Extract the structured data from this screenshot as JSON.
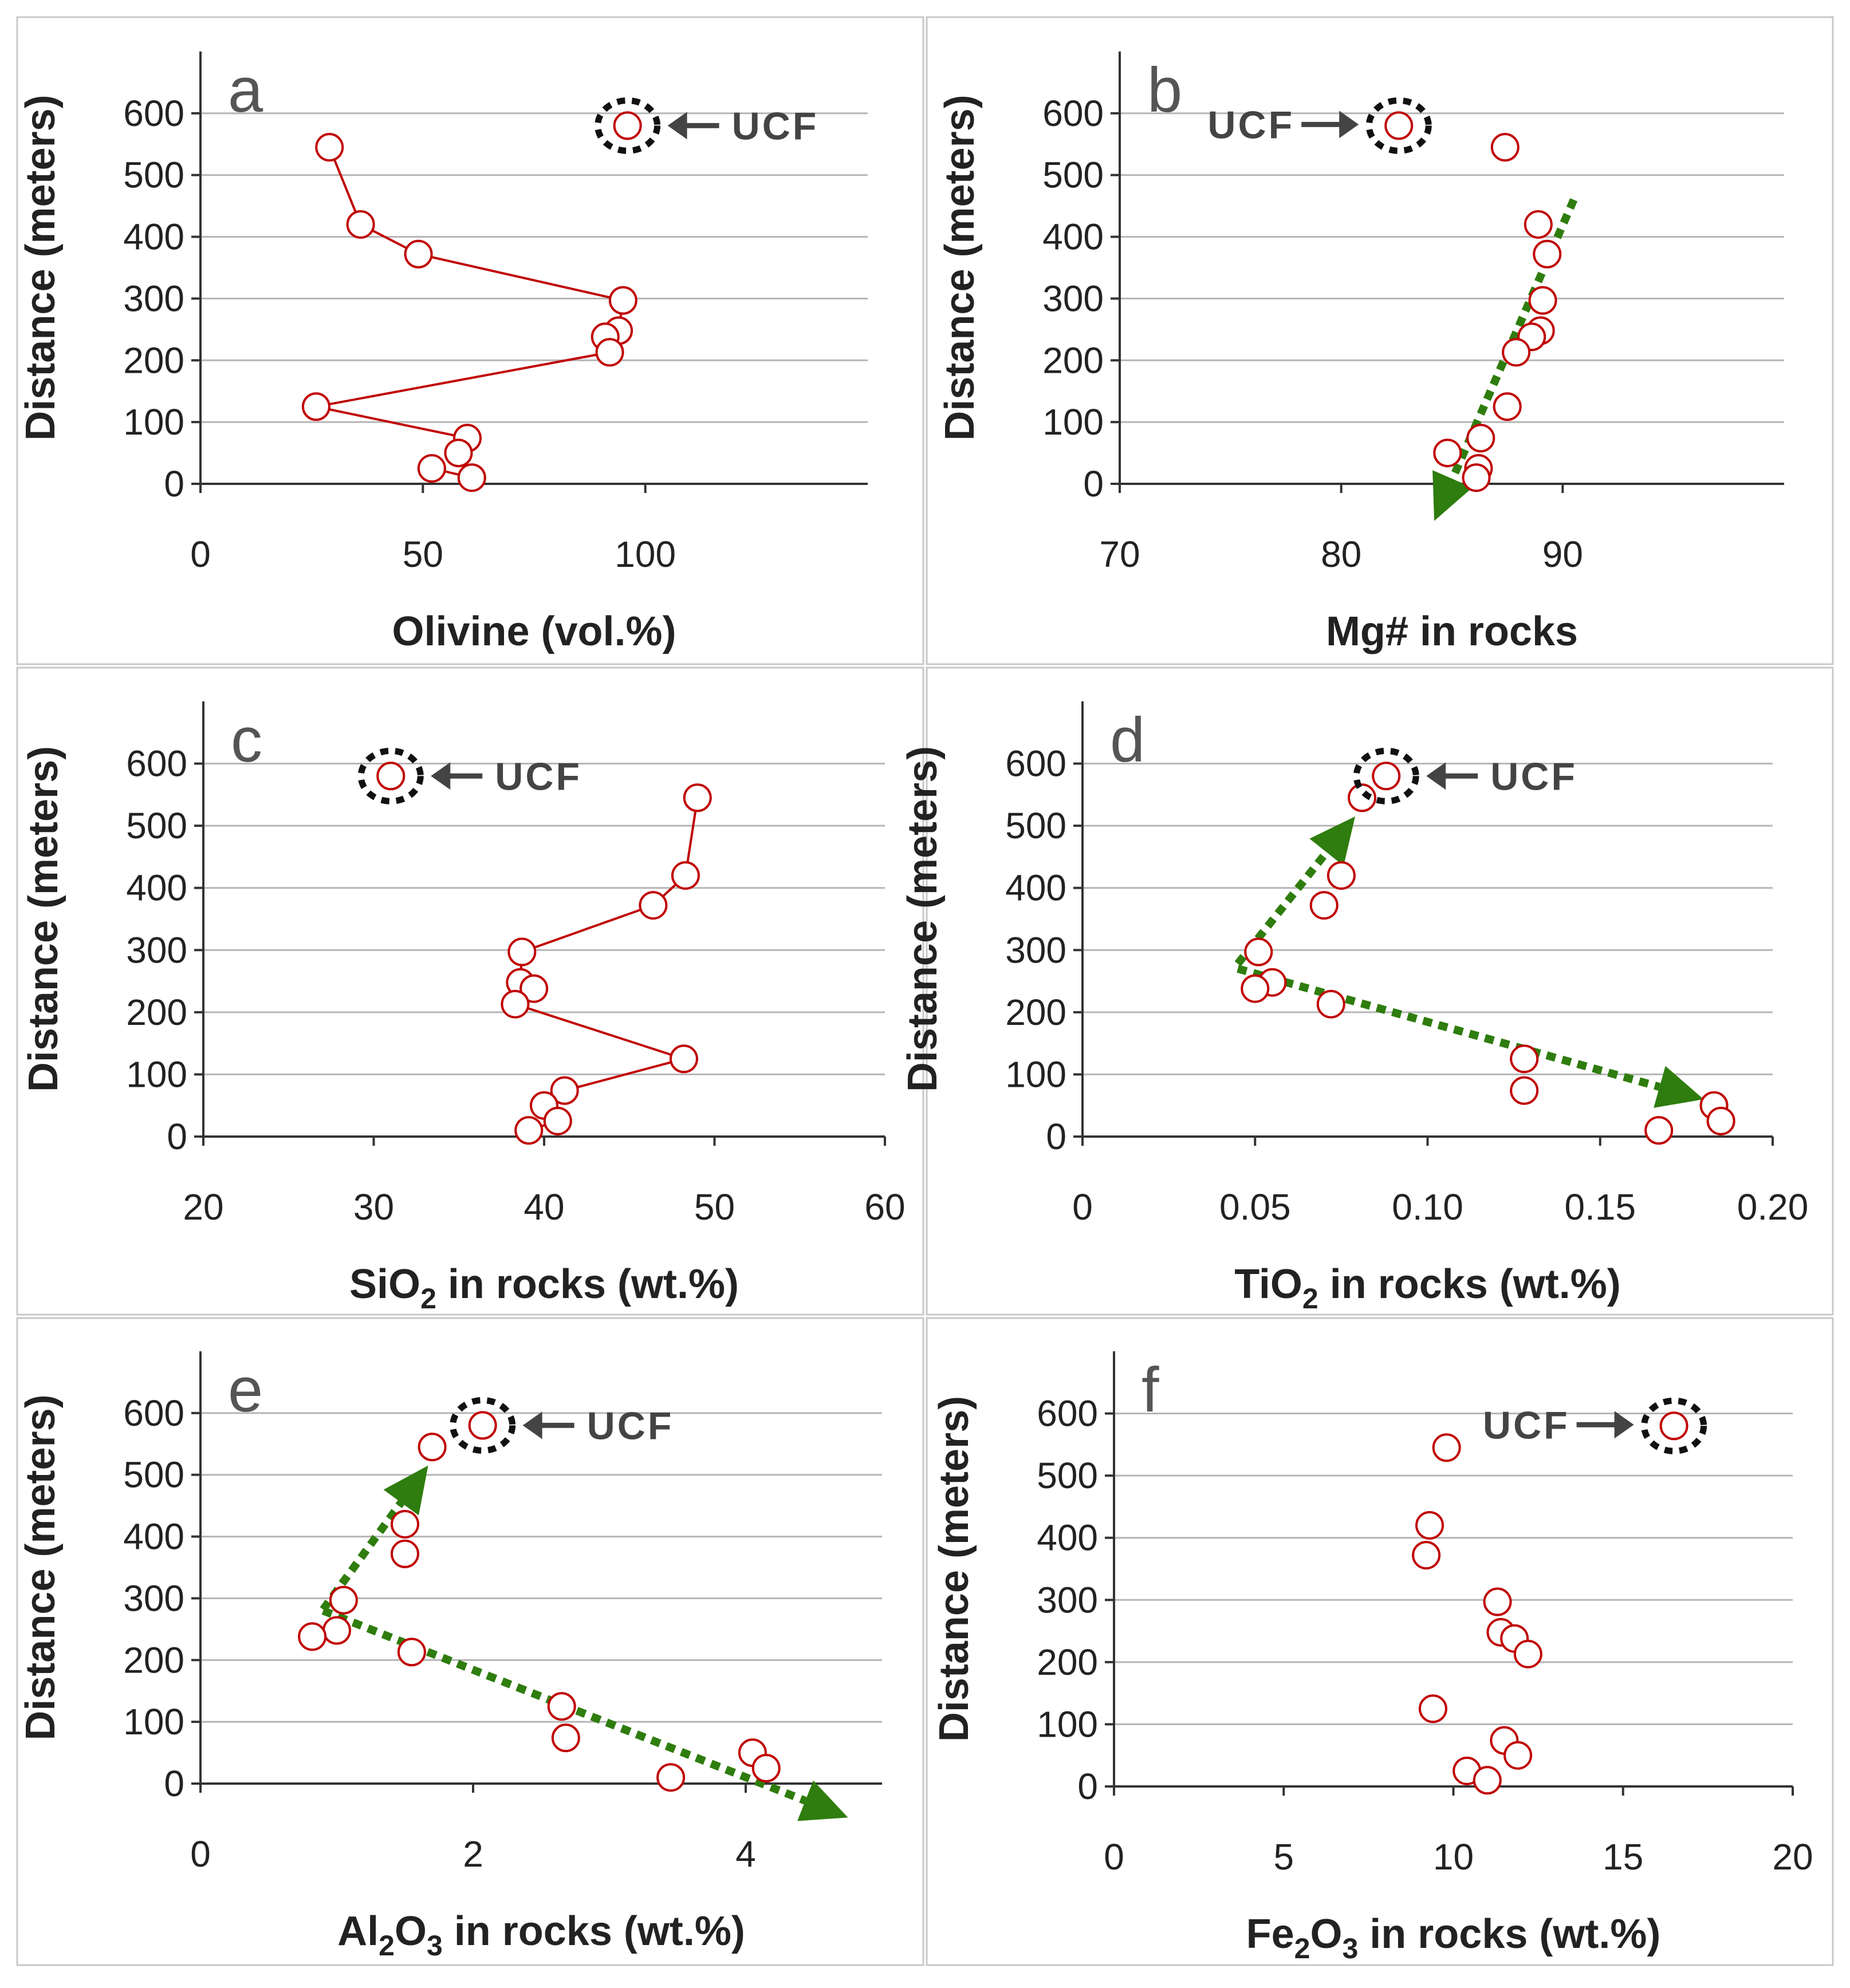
{
  "colors": {
    "marker": "#c00000",
    "trend": "#2e7d0e",
    "grid": "#b5b5b5",
    "axis": "#333333",
    "ucf_ring": "#111111",
    "ucf_arrow": "#444444"
  },
  "ucf_label": "UCF",
  "chart_data": [
    {
      "id": "a",
      "type": "line",
      "panel_letter": "a",
      "xlabel_parts": [
        "Olivine (vol.%)"
      ],
      "ylabel": "Distance (meters)",
      "xlim": [
        0,
        150
      ],
      "ylim": [
        0,
        700
      ],
      "xticks": [
        "0",
        "50",
        "100"
      ],
      "yticks": [
        "0",
        "100",
        "200",
        "300",
        "400",
        "500",
        "600"
      ],
      "ucf": {
        "x": 96,
        "y": 580,
        "arrow_dir": "left"
      },
      "points": [
        {
          "x": 29,
          "y": 545
        },
        {
          "x": 36,
          "y": 420
        },
        {
          "x": 49,
          "y": 372
        },
        {
          "x": 95,
          "y": 297
        },
        {
          "x": 94,
          "y": 248
        },
        {
          "x": 91,
          "y": 238
        },
        {
          "x": 92,
          "y": 213
        },
        {
          "x": 26,
          "y": 125
        },
        {
          "x": 60,
          "y": 74
        },
        {
          "x": 58,
          "y": 50
        },
        {
          "x": 61,
          "y": 10
        },
        {
          "x": 52,
          "y": 25
        }
      ]
    },
    {
      "id": "b",
      "type": "scatter",
      "panel_letter": "b",
      "xlabel_parts": [
        "Mg# in rocks"
      ],
      "ylabel": "Distance (meters)",
      "xlim": [
        70,
        100
      ],
      "ylim": [
        0,
        700
      ],
      "xticks": [
        "70",
        "80",
        "90"
      ],
      "yticks": [
        "0",
        "100",
        "200",
        "300",
        "400",
        "500",
        "600"
      ],
      "ucf": {
        "x": 82.6,
        "y": 580,
        "arrow_dir": "right"
      },
      "points": [
        {
          "x": 87.4,
          "y": 545
        },
        {
          "x": 88.9,
          "y": 420
        },
        {
          "x": 89.3,
          "y": 372
        },
        {
          "x": 89.1,
          "y": 297
        },
        {
          "x": 89.0,
          "y": 248
        },
        {
          "x": 88.6,
          "y": 238
        },
        {
          "x": 87.9,
          "y": 213
        },
        {
          "x": 87.5,
          "y": 125
        },
        {
          "x": 86.3,
          "y": 74
        },
        {
          "x": 84.8,
          "y": 50
        },
        {
          "x": 86.2,
          "y": 25
        },
        {
          "x": 86.1,
          "y": 10
        }
      ],
      "trend_arrows": [
        {
          "from": [
            90.5,
            460
          ],
          "to": [
            84.2,
            -60
          ]
        }
      ]
    },
    {
      "id": "c",
      "type": "line",
      "panel_letter": "c",
      "xlabel_parts": [
        "SiO",
        "2",
        "  in rocks (wt.%)"
      ],
      "ylabel": "Distance (meters)",
      "xlim": [
        20,
        60
      ],
      "ylim": [
        0,
        700
      ],
      "xticks": [
        "20",
        "30",
        "40",
        "50",
        "60"
      ],
      "yticks": [
        "0",
        "100",
        "200",
        "300",
        "400",
        "500",
        "600"
      ],
      "ucf": {
        "x": 31,
        "y": 580,
        "arrow_dir": "left"
      },
      "points": [
        {
          "x": 49.0,
          "y": 545
        },
        {
          "x": 48.3,
          "y": 420
        },
        {
          "x": 46.4,
          "y": 372
        },
        {
          "x": 38.7,
          "y": 297
        },
        {
          "x": 38.6,
          "y": 248
        },
        {
          "x": 39.4,
          "y": 238
        },
        {
          "x": 38.3,
          "y": 213
        },
        {
          "x": 48.2,
          "y": 125
        },
        {
          "x": 41.2,
          "y": 74
        },
        {
          "x": 40.0,
          "y": 50
        },
        {
          "x": 40.8,
          "y": 25
        },
        {
          "x": 39.1,
          "y": 10
        }
      ]
    },
    {
      "id": "d",
      "type": "scatter",
      "panel_letter": "d",
      "xlabel_parts": [
        "TiO",
        "2",
        " in rocks (wt.%)"
      ],
      "ylabel": "Distance (meters)",
      "xlim": [
        0,
        0.2
      ],
      "ylim": [
        0,
        700
      ],
      "xticks": [
        "0",
        "0.05",
        "0.10",
        "0.15",
        "0.20"
      ],
      "yticks": [
        "0",
        "100",
        "200",
        "300",
        "400",
        "500",
        "600"
      ],
      "ucf": {
        "x": 0.088,
        "y": 580,
        "arrow_dir": "left"
      },
      "points": [
        {
          "x": 0.081,
          "y": 545
        },
        {
          "x": 0.075,
          "y": 420
        },
        {
          "x": 0.07,
          "y": 372
        },
        {
          "x": 0.051,
          "y": 297
        },
        {
          "x": 0.055,
          "y": 248
        },
        {
          "x": 0.05,
          "y": 238
        },
        {
          "x": 0.072,
          "y": 213
        },
        {
          "x": 0.128,
          "y": 125
        },
        {
          "x": 0.128,
          "y": 74
        },
        {
          "x": 0.183,
          "y": 50
        },
        {
          "x": 0.185,
          "y": 25
        },
        {
          "x": 0.167,
          "y": 10
        }
      ],
      "trend_arrows": [
        {
          "from": [
            0.045,
            278
          ],
          "to": [
            0.079,
            515
          ]
        },
        {
          "from": [
            0.045,
            270
          ],
          "to": [
            0.18,
            60
          ]
        }
      ]
    },
    {
      "id": "e",
      "type": "scatter",
      "panel_letter": "e",
      "xlabel_parts": [
        "Al",
        "2",
        "O",
        "3",
        " in rocks (wt.%)"
      ],
      "ylabel": "Distance (meters)",
      "xlim": [
        0,
        5
      ],
      "ylim": [
        0,
        700
      ],
      "xticks": [
        "0",
        "2",
        "4"
      ],
      "yticks": [
        "0",
        "100",
        "200",
        "300",
        "400",
        "500",
        "600"
      ],
      "ucf": {
        "x": 2.07,
        "y": 580,
        "arrow_dir": "left"
      },
      "points": [
        {
          "x": 1.7,
          "y": 545
        },
        {
          "x": 1.5,
          "y": 420
        },
        {
          "x": 1.5,
          "y": 372
        },
        {
          "x": 1.05,
          "y": 297
        },
        {
          "x": 1.0,
          "y": 248
        },
        {
          "x": 0.82,
          "y": 238
        },
        {
          "x": 1.55,
          "y": 213
        },
        {
          "x": 2.65,
          "y": 125
        },
        {
          "x": 2.68,
          "y": 74
        },
        {
          "x": 4.05,
          "y": 50
        },
        {
          "x": 4.15,
          "y": 25
        },
        {
          "x": 3.45,
          "y": 10
        }
      ],
      "trend_arrows": [
        {
          "from": [
            0.9,
            282
          ],
          "to": [
            1.67,
            515
          ]
        },
        {
          "from": [
            0.9,
            280
          ],
          "to": [
            4.75,
            -55
          ]
        }
      ]
    },
    {
      "id": "f",
      "type": "scatter",
      "panel_letter": "f",
      "xlabel_parts": [
        "Fe",
        "2",
        "O",
        "3",
        " in rocks (wt.%)"
      ],
      "ylabel": "Distance (meters)",
      "xlim": [
        0,
        20
      ],
      "ylim": [
        0,
        700
      ],
      "xticks": [
        "0",
        "5",
        "10",
        "15",
        "20"
      ],
      "yticks": [
        "0",
        "100",
        "200",
        "300",
        "400",
        "500",
        "600"
      ],
      "ucf": {
        "x": 16.5,
        "y": 580,
        "arrow_dir": "right"
      },
      "points": [
        {
          "x": 9.8,
          "y": 545
        },
        {
          "x": 9.3,
          "y": 420
        },
        {
          "x": 9.2,
          "y": 372
        },
        {
          "x": 11.3,
          "y": 297
        },
        {
          "x": 11.4,
          "y": 248
        },
        {
          "x": 11.8,
          "y": 238
        },
        {
          "x": 12.2,
          "y": 213
        },
        {
          "x": 9.4,
          "y": 125
        },
        {
          "x": 11.5,
          "y": 74
        },
        {
          "x": 11.9,
          "y": 50
        },
        {
          "x": 10.4,
          "y": 25
        },
        {
          "x": 11.0,
          "y": 10
        }
      ]
    }
  ]
}
